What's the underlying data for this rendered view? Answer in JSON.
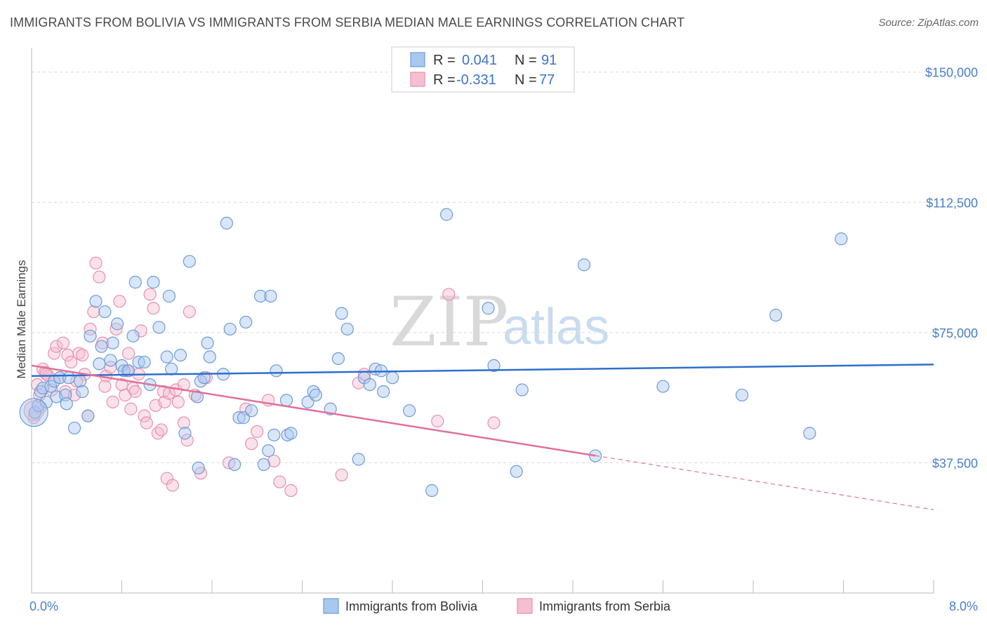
{
  "title": "IMMIGRANTS FROM BOLIVIA VS IMMIGRANTS FROM SERBIA MEDIAN MALE EARNINGS CORRELATION CHART",
  "source": "Source: ZipAtlas.com",
  "watermark": {
    "zip": "ZIP",
    "atlas": "atlas"
  },
  "colors": {
    "bolivia_fill": "#a9c8ef",
    "bolivia_stroke": "#6d9bd8",
    "bolivia_line": "#2e6fcc",
    "serbia_fill": "#f5bfd1",
    "serbia_stroke": "#e98fb0",
    "serbia_line": "#e0709a",
    "grid": "#d9d9d9",
    "axis_text": "#4a7fcc"
  },
  "legend": {
    "rows": [
      {
        "r_label": "R =",
        "r_value": "0.041",
        "n_label": "N =",
        "n_value": "91"
      },
      {
        "r_label": "R =",
        "r_value": "-0.331",
        "n_label": "N =",
        "n_value": "77"
      }
    ]
  },
  "chart_data": {
    "type": "scatter",
    "title": "IMMIGRANTS FROM BOLIVIA VS IMMIGRANTS FROM SERBIA MEDIAN MALE EARNINGS CORRELATION CHART",
    "xlabel": "",
    "ylabel": "Median Male Earnings",
    "xlim": [
      0,
      8
    ],
    "ylim": [
      0,
      155000
    ],
    "x_tick_labels": [
      "0.0%",
      "8.0%"
    ],
    "y_ticks": [
      37500,
      75000,
      112500,
      150000
    ],
    "y_tick_labels": [
      "$37,500",
      "$75,000",
      "$112,500",
      "$150,000"
    ],
    "grid": true,
    "legend_position": "top-center",
    "series": [
      {
        "name": "Immigrants from Bolivia",
        "trend": {
          "x": [
            0,
            8
          ],
          "y": [
            62500,
            65800
          ],
          "dashed_from": null
        },
        "points": [
          [
            0.03,
            52000
          ],
          [
            0.06,
            54000
          ],
          [
            0.08,
            58000
          ],
          [
            0.1,
            59000
          ],
          [
            0.13,
            55000
          ],
          [
            0.17,
            59500
          ],
          [
            0.2,
            61000
          ],
          [
            0.22,
            56500
          ],
          [
            0.25,
            62000
          ],
          [
            0.3,
            57000
          ],
          [
            0.33,
            62000
          ],
          [
            0.38,
            47500
          ],
          [
            0.43,
            61000
          ],
          [
            0.45,
            58000
          ],
          [
            0.5,
            51000
          ],
          [
            0.52,
            74000
          ],
          [
            0.57,
            84000
          ],
          [
            0.62,
            71000
          ],
          [
            0.65,
            81000
          ],
          [
            0.72,
            72000
          ],
          [
            0.76,
            77500
          ],
          [
            0.8,
            65500
          ],
          [
            0.82,
            64000
          ],
          [
            0.86,
            64000
          ],
          [
            0.9,
            74000
          ],
          [
            0.95,
            66500
          ],
          [
            1.0,
            66500
          ],
          [
            1.08,
            89500
          ],
          [
            1.13,
            76500
          ],
          [
            1.22,
            85500
          ],
          [
            1.24,
            64500
          ],
          [
            1.32,
            68500
          ],
          [
            1.36,
            46000
          ],
          [
            1.4,
            95500
          ],
          [
            1.47,
            56500
          ],
          [
            1.5,
            61000
          ],
          [
            1.53,
            62000
          ],
          [
            1.56,
            72000
          ],
          [
            1.58,
            68000
          ],
          [
            1.7,
            63000
          ],
          [
            1.73,
            106500
          ],
          [
            1.76,
            76000
          ],
          [
            1.8,
            37000
          ],
          [
            1.84,
            50500
          ],
          [
            1.88,
            50500
          ],
          [
            1.9,
            78000
          ],
          [
            1.95,
            52500
          ],
          [
            2.03,
            85500
          ],
          [
            2.12,
            85500
          ],
          [
            2.15,
            45500
          ],
          [
            2.17,
            64000
          ],
          [
            2.27,
            45500
          ],
          [
            2.3,
            46000
          ],
          [
            2.45,
            55000
          ],
          [
            2.5,
            58000
          ],
          [
            2.52,
            57000
          ],
          [
            2.65,
            53000
          ],
          [
            2.72,
            67500
          ],
          [
            2.75,
            80500
          ],
          [
            2.8,
            76000
          ],
          [
            2.9,
            38500
          ],
          [
            2.95,
            62000
          ],
          [
            3.0,
            60000
          ],
          [
            3.05,
            64500
          ],
          [
            3.1,
            64000
          ],
          [
            3.12,
            58000
          ],
          [
            3.2,
            62000
          ],
          [
            3.35,
            52500
          ],
          [
            3.55,
            29500
          ],
          [
            3.68,
            109000
          ],
          [
            4.05,
            82000
          ],
          [
            4.1,
            65500
          ],
          [
            4.3,
            35000
          ],
          [
            4.35,
            58500
          ],
          [
            4.9,
            94500
          ],
          [
            5.0,
            39500
          ],
          [
            5.6,
            59500
          ],
          [
            6.3,
            57000
          ],
          [
            6.6,
            80000
          ],
          [
            6.9,
            46000
          ],
          [
            7.18,
            102000
          ],
          [
            1.2,
            68000
          ],
          [
            1.48,
            36000
          ],
          [
            1.05,
            60000
          ],
          [
            0.7,
            67000
          ],
          [
            0.6,
            66000
          ],
          [
            2.26,
            55500
          ],
          [
            2.06,
            37000
          ],
          [
            2.1,
            41000
          ],
          [
            0.92,
            89500
          ],
          [
            0.31,
            54500
          ]
        ]
      },
      {
        "name": "Immigrants from Serbia",
        "trend": {
          "x": [
            0,
            8
          ],
          "y": [
            65500,
            24000
          ],
          "dashed_from": 5.0
        },
        "points": [
          [
            0.02,
            50500
          ],
          [
            0.05,
            60000
          ],
          [
            0.07,
            57000
          ],
          [
            0.1,
            64500
          ],
          [
            0.12,
            63500
          ],
          [
            0.15,
            62500
          ],
          [
            0.2,
            69000
          ],
          [
            0.22,
            71000
          ],
          [
            0.25,
            62000
          ],
          [
            0.28,
            72000
          ],
          [
            0.3,
            58000
          ],
          [
            0.32,
            68500
          ],
          [
            0.35,
            66500
          ],
          [
            0.38,
            57000
          ],
          [
            0.42,
            69000
          ],
          [
            0.45,
            68500
          ],
          [
            0.47,
            63000
          ],
          [
            0.5,
            51000
          ],
          [
            0.52,
            76000
          ],
          [
            0.55,
            81000
          ],
          [
            0.57,
            95000
          ],
          [
            0.6,
            91000
          ],
          [
            0.63,
            72000
          ],
          [
            0.66,
            62500
          ],
          [
            0.7,
            65000
          ],
          [
            0.72,
            55000
          ],
          [
            0.75,
            76000
          ],
          [
            0.78,
            84000
          ],
          [
            0.8,
            60000
          ],
          [
            0.83,
            57000
          ],
          [
            0.86,
            69000
          ],
          [
            0.88,
            53000
          ],
          [
            0.9,
            59000
          ],
          [
            0.92,
            58000
          ],
          [
            0.95,
            63000
          ],
          [
            0.97,
            75500
          ],
          [
            1.0,
            51000
          ],
          [
            1.02,
            49000
          ],
          [
            1.05,
            86000
          ],
          [
            1.08,
            82000
          ],
          [
            1.1,
            54000
          ],
          [
            1.12,
            46000
          ],
          [
            1.15,
            47000
          ],
          [
            1.17,
            58000
          ],
          [
            1.18,
            55000
          ],
          [
            1.2,
            33000
          ],
          [
            1.22,
            57500
          ],
          [
            1.25,
            31000
          ],
          [
            1.28,
            58500
          ],
          [
            1.3,
            55000
          ],
          [
            1.35,
            49000
          ],
          [
            1.38,
            44000
          ],
          [
            1.4,
            81000
          ],
          [
            1.45,
            57000
          ],
          [
            1.5,
            34500
          ],
          [
            1.55,
            62000
          ],
          [
            1.75,
            37500
          ],
          [
            1.9,
            53000
          ],
          [
            1.95,
            43000
          ],
          [
            2.0,
            46500
          ],
          [
            2.1,
            55500
          ],
          [
            2.15,
            38000
          ],
          [
            2.2,
            32000
          ],
          [
            2.3,
            29500
          ],
          [
            2.75,
            34000
          ],
          [
            2.9,
            60500
          ],
          [
            2.95,
            63000
          ],
          [
            3.6,
            49500
          ],
          [
            3.7,
            86000
          ],
          [
            4.1,
            49000
          ],
          [
            0.65,
            59500
          ],
          [
            0.4,
            61000
          ],
          [
            0.18,
            58500
          ],
          [
            0.08,
            53500
          ],
          [
            0.13,
            63000
          ],
          [
            0.85,
            64000
          ],
          [
            1.35,
            60000
          ]
        ]
      }
    ]
  },
  "bottom_legend": {
    "items": [
      "Immigrants from Bolivia",
      "Immigrants from Serbia"
    ]
  }
}
